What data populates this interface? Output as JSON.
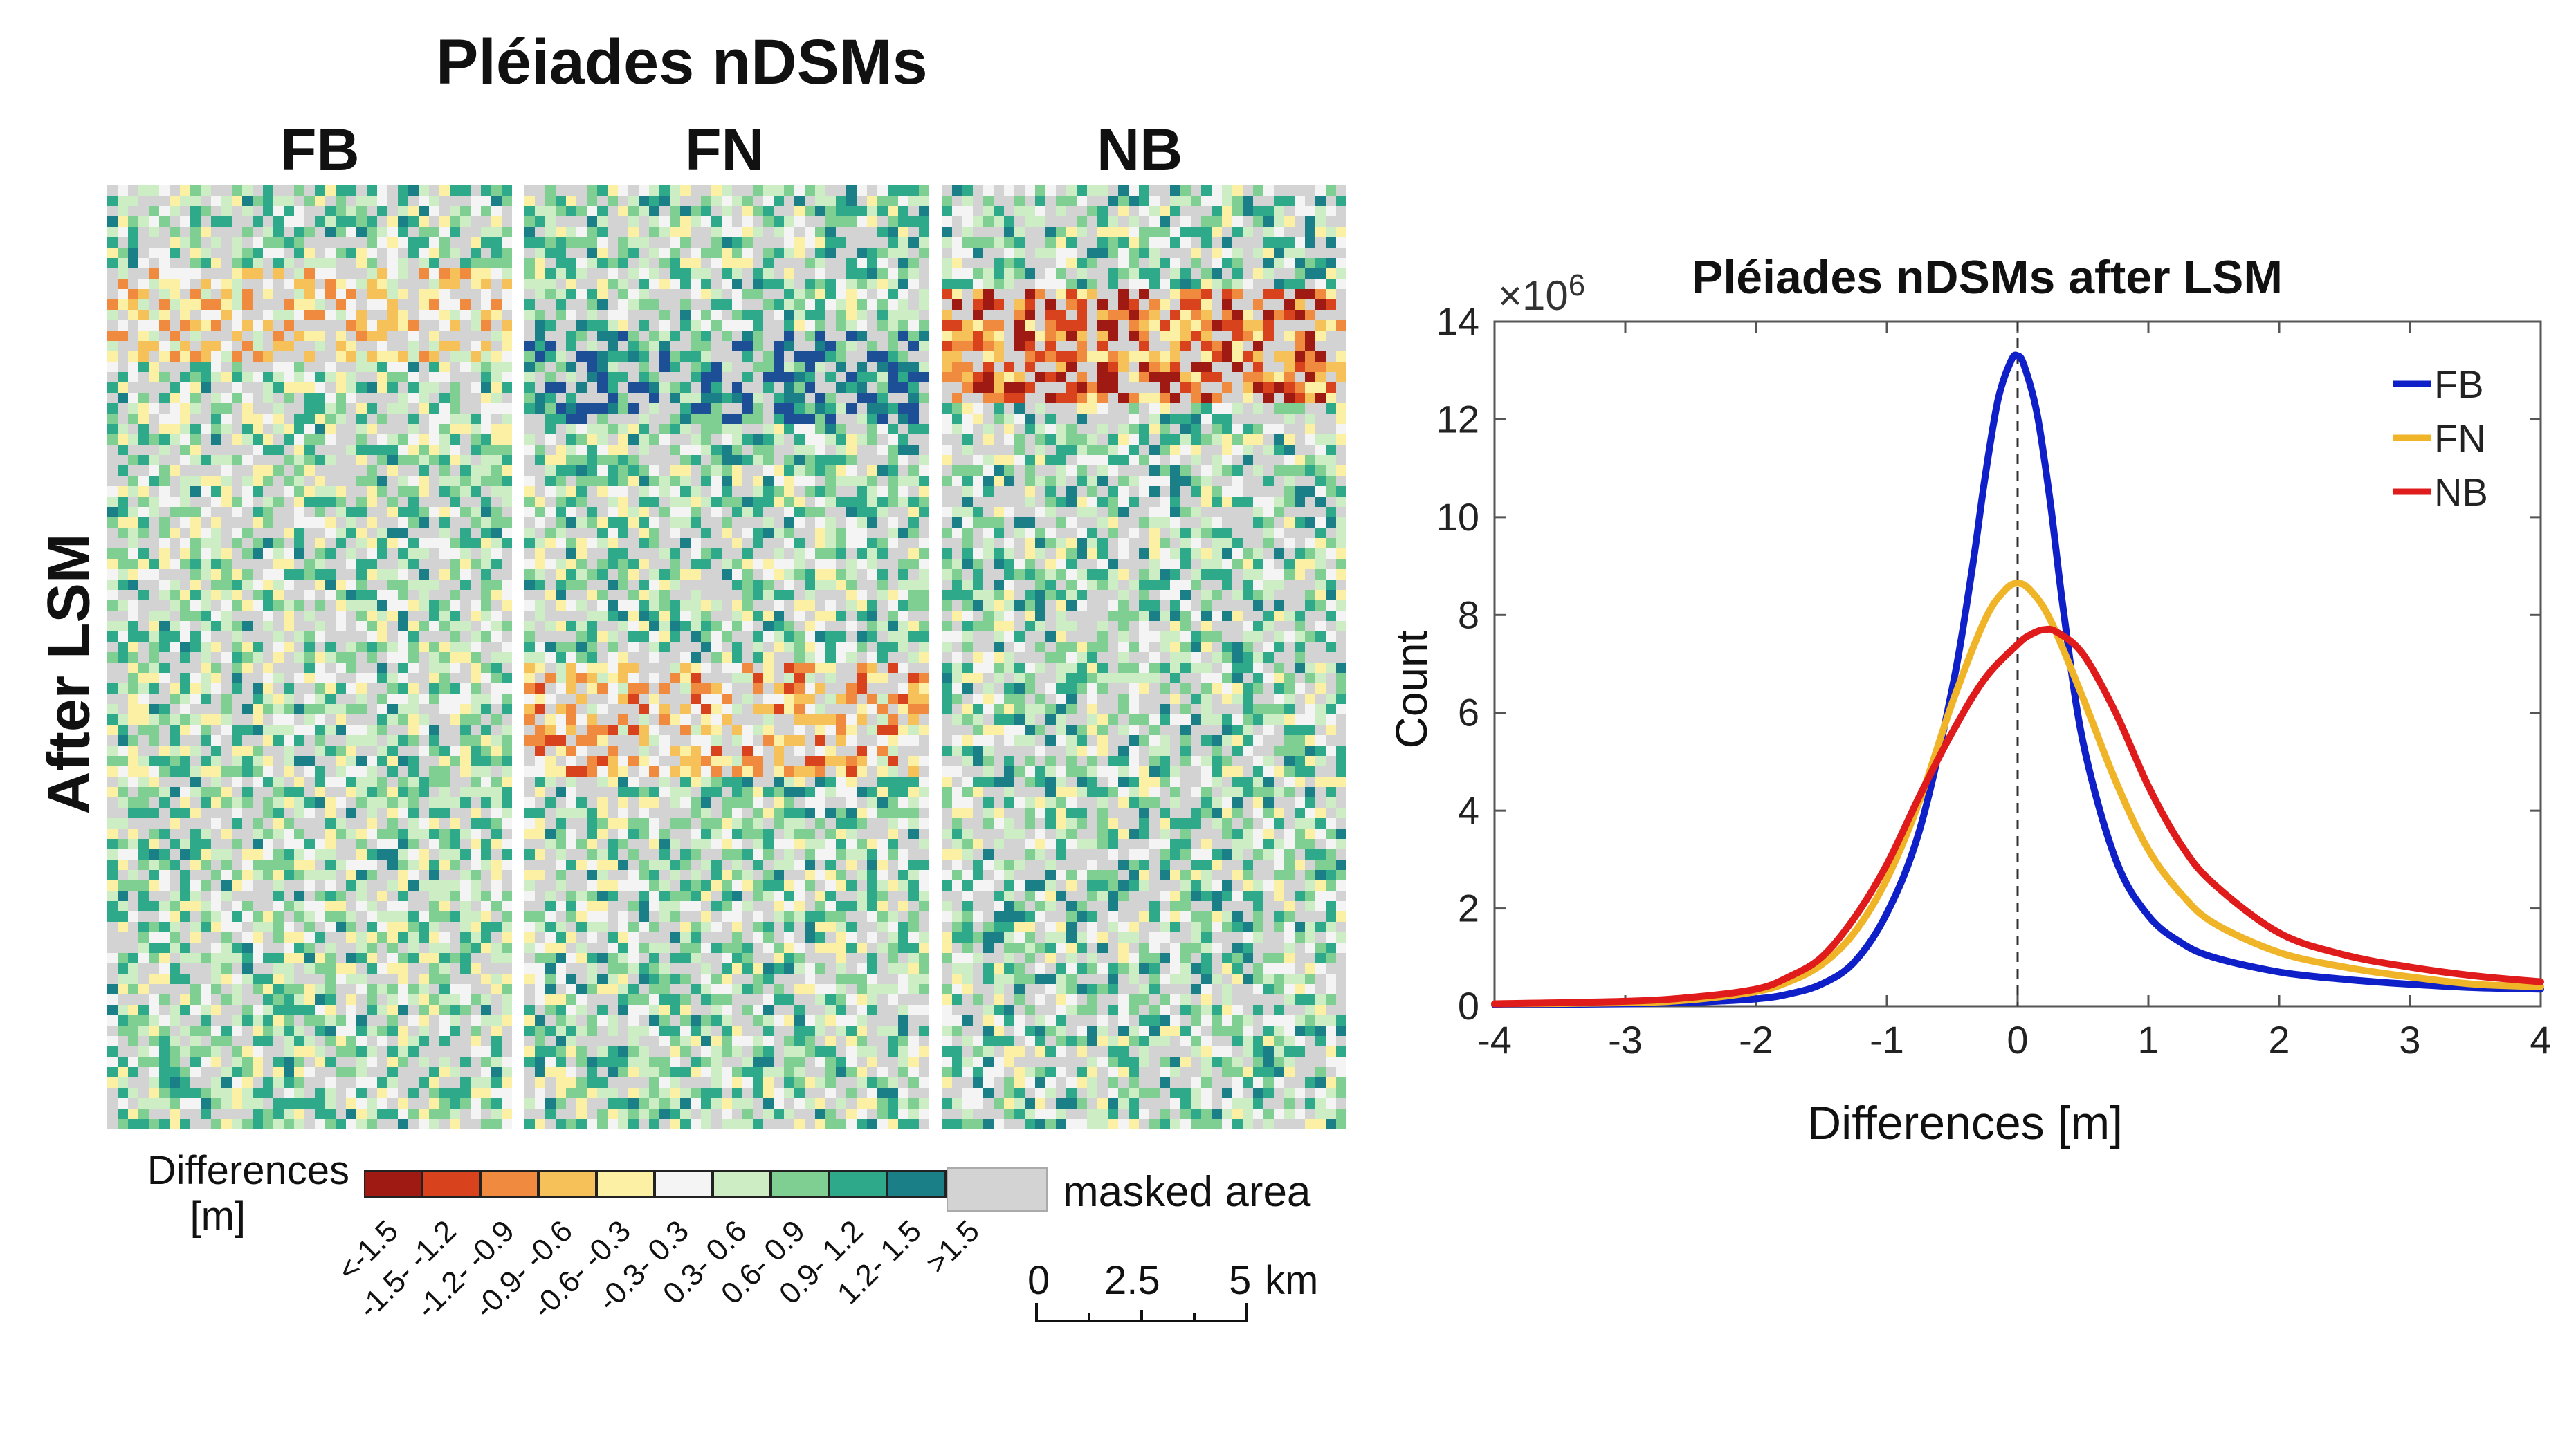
{
  "figure": {
    "main_title": "Pléiades nDSMs",
    "row_label": "After LSM",
    "panels": [
      {
        "id": "fb",
        "title": "FB"
      },
      {
        "id": "fn",
        "title": "FN"
      },
      {
        "id": "nb",
        "title": "NB"
      }
    ]
  },
  "legend": {
    "title_line1": "Differences",
    "title_line2": "[m]",
    "bins": [
      {
        "label": "<-1.5",
        "color": "#9e1a12"
      },
      {
        "label": "-1.5- -1.2",
        "color": "#d8431e"
      },
      {
        "label": "-1.2- -0.9",
        "color": "#f08a3e"
      },
      {
        "label": "-0.9- -0.6",
        "color": "#f7c15a"
      },
      {
        "label": "-0.6- -0.3",
        "color": "#fbf0a4"
      },
      {
        "label": "-0.3- 0.3",
        "color": "#f4f4f4"
      },
      {
        "label": "0.3- 0.6",
        "color": "#cdeec4"
      },
      {
        "label": "0.6- 0.9",
        "color": "#7fcf93"
      },
      {
        "label": "0.9- 1.2",
        "color": "#2ea98a"
      },
      {
        "label": "1.2- 1.5",
        "color": "#1a7f86"
      },
      {
        "label": ">1.5",
        "color": "#1d4f96"
      }
    ],
    "masked_label": "masked area",
    "masked_color": "#d3d3d3",
    "scalebar": {
      "ticks": [
        "0",
        "2.5",
        "5"
      ],
      "unit": "km"
    }
  },
  "chart_data": {
    "type": "line",
    "title": "Pléiades nDSMs after LSM",
    "xlabel": "Differences [m]",
    "ylabel": "Count",
    "y_multiplier_label": "×10",
    "y_multiplier_exp": "6",
    "xlim": [
      -4,
      4
    ],
    "ylim": [
      0,
      14
    ],
    "xticks": [
      "-4",
      "-3",
      "-2",
      "-1",
      "0",
      "1",
      "2",
      "3",
      "4"
    ],
    "yticks": [
      "0",
      "2",
      "4",
      "6",
      "8",
      "10",
      "12",
      "14"
    ],
    "legend": [
      {
        "name": "FB",
        "color": "#1020c8"
      },
      {
        "name": "FN",
        "color": "#f0b429"
      },
      {
        "name": "NB",
        "color": "#e01b1b"
      }
    ],
    "reference_line_x": 0,
    "series": [
      {
        "name": "FB",
        "color": "#1020c8",
        "x": [
          -4,
          -3,
          -2.5,
          -2,
          -1.75,
          -1.5,
          -1.25,
          -1,
          -0.75,
          -0.5,
          -0.35,
          -0.25,
          -0.15,
          -0.05,
          0,
          0.05,
          0.15,
          0.25,
          0.35,
          0.5,
          0.75,
          1,
          1.25,
          1.5,
          2,
          2.5,
          3,
          3.5,
          4
        ],
        "values": [
          0.03,
          0.05,
          0.08,
          0.15,
          0.25,
          0.45,
          0.9,
          1.9,
          3.6,
          6.5,
          8.9,
          10.8,
          12.4,
          13.2,
          13.3,
          13.1,
          12.1,
          10.3,
          8.1,
          5.4,
          3.0,
          1.85,
          1.3,
          1.0,
          0.7,
          0.55,
          0.45,
          0.38,
          0.35
        ]
      },
      {
        "name": "FN",
        "color": "#f0b429",
        "x": [
          -4,
          -3,
          -2.5,
          -2,
          -1.75,
          -1.5,
          -1.25,
          -1,
          -0.75,
          -0.5,
          -0.25,
          -0.1,
          0,
          0.1,
          0.25,
          0.5,
          0.75,
          1,
          1.25,
          1.5,
          2,
          2.5,
          3,
          3.5,
          4
        ],
        "values": [
          0.05,
          0.07,
          0.13,
          0.3,
          0.5,
          0.85,
          1.5,
          2.6,
          4.2,
          6.2,
          7.9,
          8.5,
          8.65,
          8.5,
          7.9,
          6.3,
          4.6,
          3.2,
          2.3,
          1.7,
          1.1,
          0.8,
          0.6,
          0.45,
          0.4
        ]
      },
      {
        "name": "NB",
        "color": "#e01b1b",
        "x": [
          -4,
          -3,
          -2.5,
          -2,
          -1.75,
          -1.5,
          -1.25,
          -1,
          -0.75,
          -0.5,
          -0.25,
          0,
          0.1,
          0.2,
          0.3,
          0.5,
          0.75,
          1,
          1.25,
          1.5,
          2,
          2.5,
          3,
          3.5,
          4
        ],
        "values": [
          0.05,
          0.1,
          0.18,
          0.35,
          0.6,
          1.0,
          1.8,
          2.9,
          4.3,
          5.6,
          6.7,
          7.4,
          7.6,
          7.7,
          7.65,
          7.2,
          6.0,
          4.5,
          3.3,
          2.5,
          1.5,
          1.05,
          0.8,
          0.62,
          0.5
        ]
      }
    ]
  }
}
